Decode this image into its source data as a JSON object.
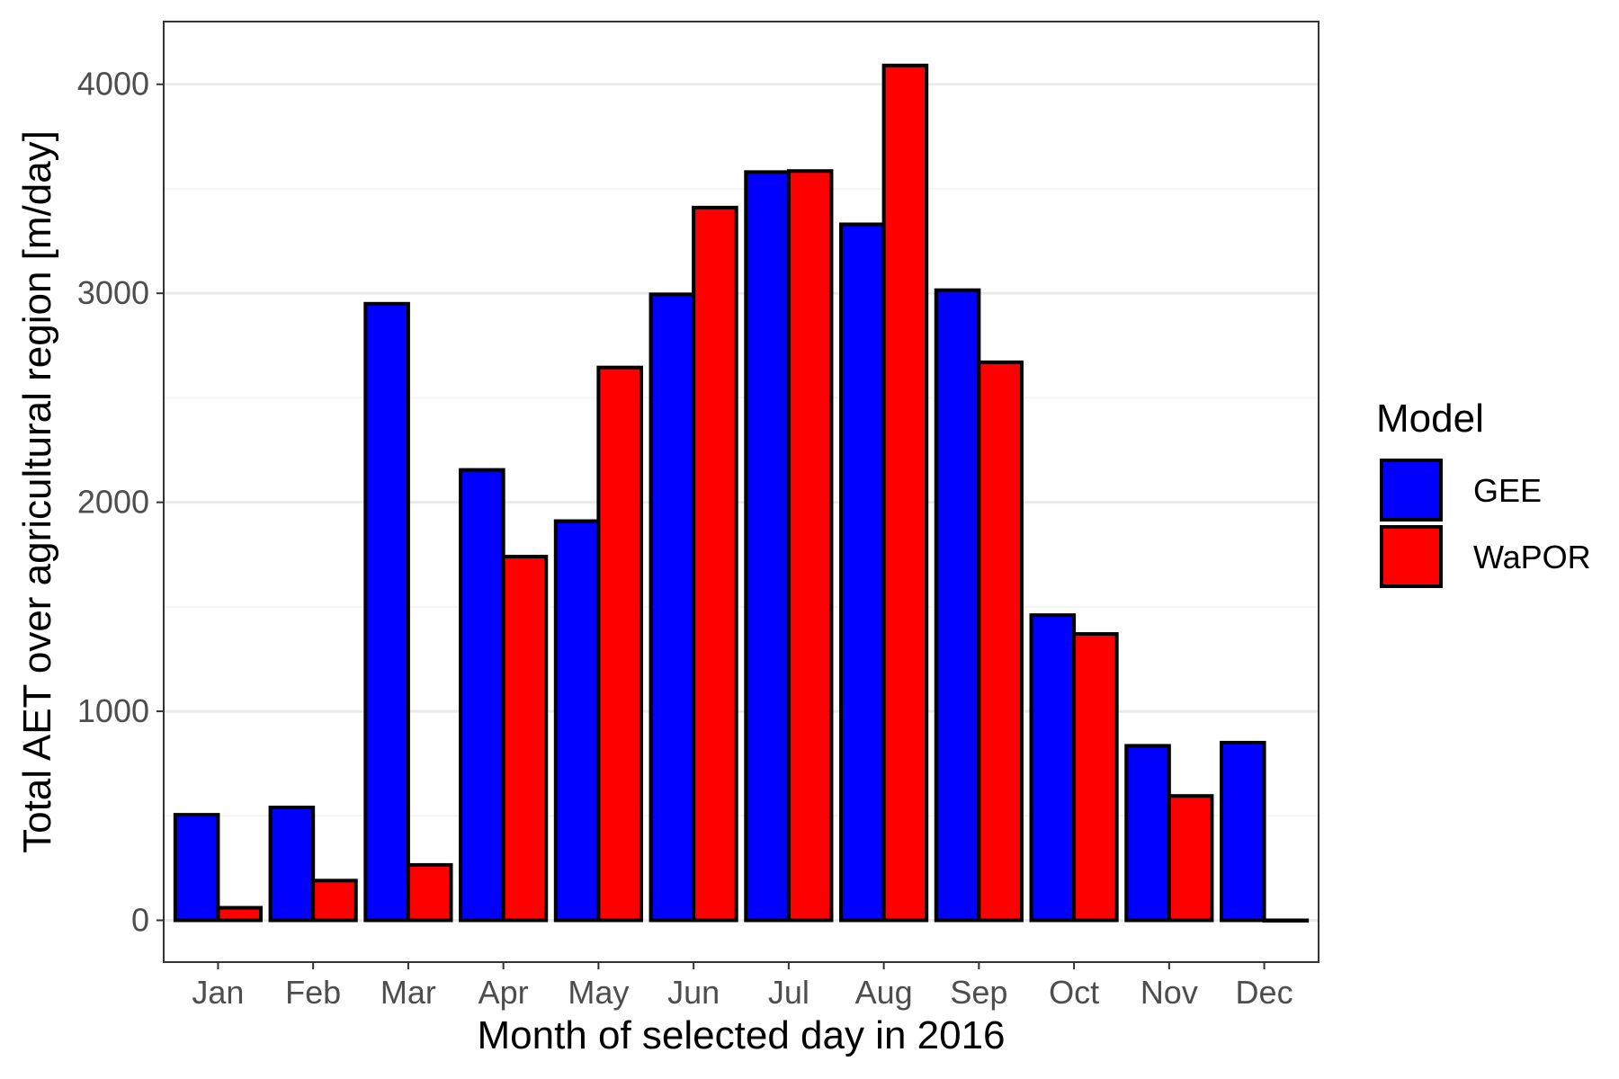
{
  "chart_data": {
    "type": "bar",
    "xlabel": "Month of selected day in 2016",
    "ylabel": "Total AET over agricultural region [m/day]",
    "categories": [
      "Jan",
      "Feb",
      "Mar",
      "Apr",
      "May",
      "Jun",
      "Jul",
      "Aug",
      "Sep",
      "Oct",
      "Nov",
      "Dec"
    ],
    "series": [
      {
        "name": "GEE",
        "color": "#0000ff",
        "values": [
          505,
          540,
          2950,
          2155,
          1910,
          2995,
          3580,
          3330,
          3015,
          1460,
          835,
          850
        ]
      },
      {
        "name": "WaPOR",
        "color": "#ff0000",
        "values": [
          60,
          190,
          265,
          1740,
          2645,
          3410,
          3585,
          4090,
          2670,
          1370,
          595,
          0
        ]
      }
    ],
    "ylim": [
      -200,
      4300
    ],
    "yticks": [
      0,
      1000,
      2000,
      3000,
      4000
    ],
    "grid": true,
    "legend": {
      "title": "Model",
      "position": "right"
    }
  }
}
